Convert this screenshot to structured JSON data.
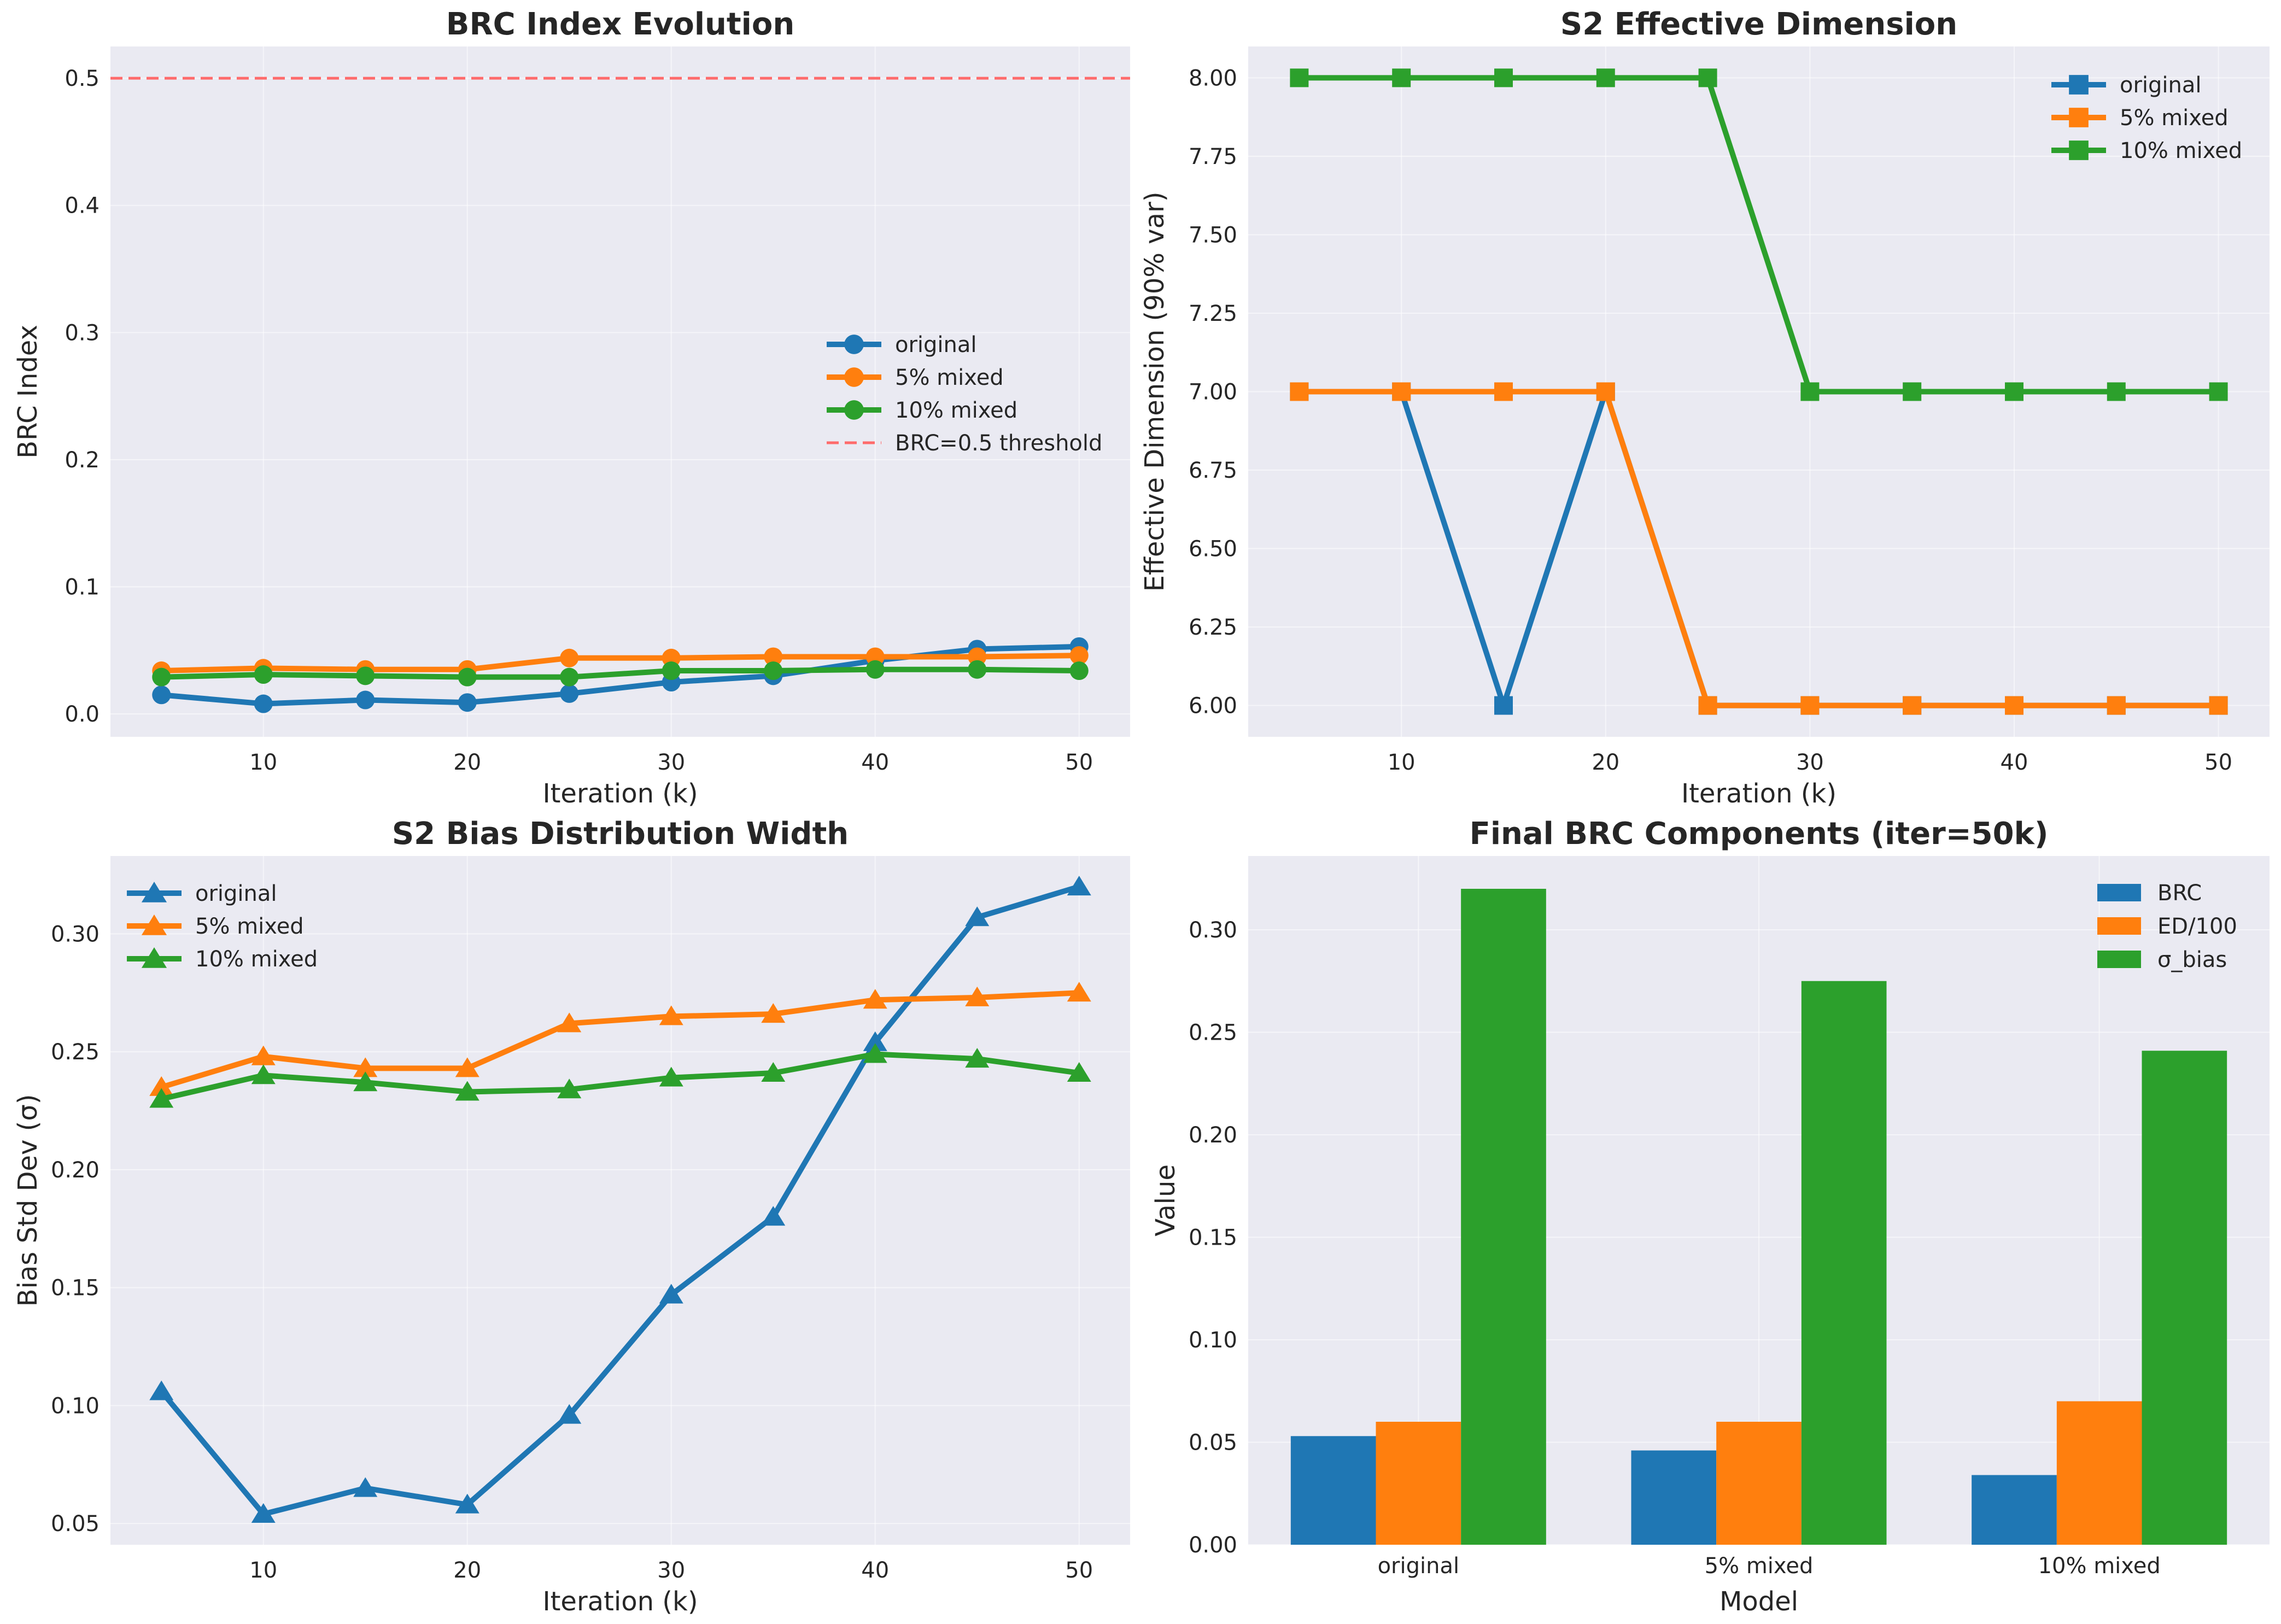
{
  "chart_data": [
    {
      "type": "line",
      "title": "BRC Index Evolution",
      "xlabel": "Iteration (k)",
      "ylabel": "BRC Index",
      "x": [
        5,
        10,
        15,
        20,
        25,
        30,
        35,
        40,
        45,
        50
      ],
      "xticks": [
        "10",
        "20",
        "30",
        "40",
        "50"
      ],
      "yticks": [
        "0.0",
        "0.1",
        "0.2",
        "0.3",
        "0.4",
        "0.5"
      ],
      "xlim": [
        2.5,
        52.5
      ],
      "ylim": [
        -0.018,
        0.525
      ],
      "marker": "circle",
      "grid": true,
      "legend_position": "center-right",
      "series": [
        {
          "name": "original",
          "color": "#1f77b4",
          "values": [
            0.015,
            0.008,
            0.011,
            0.009,
            0.016,
            0.025,
            0.03,
            0.042,
            0.051,
            0.053
          ]
        },
        {
          "name": "5% mixed",
          "color": "#ff7f0e",
          "values": [
            0.034,
            0.036,
            0.035,
            0.035,
            0.044,
            0.044,
            0.045,
            0.045,
            0.045,
            0.046
          ]
        },
        {
          "name": "10% mixed",
          "color": "#2ca02c",
          "values": [
            0.029,
            0.031,
            0.03,
            0.029,
            0.029,
            0.034,
            0.034,
            0.035,
            0.035,
            0.034
          ]
        }
      ],
      "reference_lines": [
        {
          "name": "BRC=0.5 threshold",
          "y": 0.5,
          "color": "#ff6b6b",
          "style": "dashed"
        }
      ]
    },
    {
      "type": "line",
      "title": "S2 Effective Dimension",
      "xlabel": "Iteration (k)",
      "ylabel": "Effective Dimension (90% var)",
      "x": [
        5,
        10,
        15,
        20,
        25,
        30,
        35,
        40,
        45,
        50
      ],
      "xticks": [
        "10",
        "20",
        "30",
        "40",
        "50"
      ],
      "yticks": [
        "6.00",
        "6.25",
        "6.50",
        "6.75",
        "7.00",
        "7.25",
        "7.50",
        "7.75",
        "8.00"
      ],
      "xlim": [
        2.5,
        52.5
      ],
      "ylim": [
        5.9,
        8.1
      ],
      "marker": "square",
      "grid": true,
      "legend_position": "top-right",
      "series": [
        {
          "name": "original",
          "color": "#1f77b4",
          "values": [
            7,
            7,
            6,
            7,
            6,
            6,
            6,
            6,
            6,
            6
          ]
        },
        {
          "name": "5% mixed",
          "color": "#ff7f0e",
          "values": [
            7,
            7,
            7,
            7,
            6,
            6,
            6,
            6,
            6,
            6
          ]
        },
        {
          "name": "10% mixed",
          "color": "#2ca02c",
          "values": [
            8,
            8,
            8,
            8,
            8,
            7,
            7,
            7,
            7,
            7
          ]
        }
      ]
    },
    {
      "type": "line",
      "title": "S2 Bias Distribution Width",
      "xlabel": "Iteration (k)",
      "ylabel": "Bias Std Dev (σ)",
      "x": [
        5,
        10,
        15,
        20,
        25,
        30,
        35,
        40,
        45,
        50
      ],
      "xticks": [
        "10",
        "20",
        "30",
        "40",
        "50"
      ],
      "yticks": [
        "0.05",
        "0.10",
        "0.15",
        "0.20",
        "0.25",
        "0.30"
      ],
      "xlim": [
        2.5,
        52.5
      ],
      "ylim": [
        0.041,
        0.333
      ],
      "marker": "triangle",
      "grid": true,
      "legend_position": "top-left",
      "series": [
        {
          "name": "original",
          "color": "#1f77b4",
          "values": [
            0.106,
            0.054,
            0.065,
            0.058,
            0.096,
            0.147,
            0.18,
            0.254,
            0.307,
            0.32
          ]
        },
        {
          "name": "5% mixed",
          "color": "#ff7f0e",
          "values": [
            0.235,
            0.248,
            0.243,
            0.243,
            0.262,
            0.265,
            0.266,
            0.272,
            0.273,
            0.275
          ]
        },
        {
          "name": "10% mixed",
          "color": "#2ca02c",
          "values": [
            0.23,
            0.24,
            0.237,
            0.233,
            0.234,
            0.239,
            0.241,
            0.249,
            0.247,
            0.241
          ]
        }
      ]
    },
    {
      "type": "bar",
      "title": "Final BRC Components (iter=50k)",
      "xlabel": "Model",
      "ylabel": "Value",
      "categories": [
        "original",
        "5% mixed",
        "10% mixed"
      ],
      "yticks": [
        "0.00",
        "0.05",
        "0.10",
        "0.15",
        "0.20",
        "0.25",
        "0.30"
      ],
      "ylim": [
        0,
        0.336
      ],
      "grid": true,
      "legend_position": "top-right",
      "series": [
        {
          "name": "BRC",
          "color": "#1f77b4",
          "values": [
            0.053,
            0.046,
            0.034
          ]
        },
        {
          "name": "ED/100",
          "color": "#ff7f0e",
          "values": [
            0.06,
            0.06,
            0.07
          ]
        },
        {
          "name": "σ_bias",
          "color": "#2ca02c",
          "values": [
            0.32,
            0.275,
            0.241
          ]
        }
      ]
    }
  ]
}
